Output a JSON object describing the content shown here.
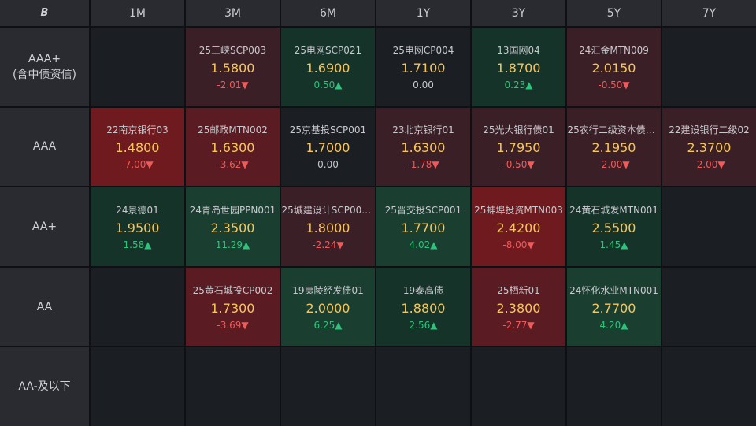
{
  "header": {
    "logo": "B",
    "tenors": [
      "1M",
      "3M",
      "6M",
      "1Y",
      "3Y",
      "5Y",
      "7Y"
    ]
  },
  "rows": [
    {
      "label": [
        "AAA+",
        "(含中债资信)"
      ],
      "cells": [
        null,
        {
          "name": "25三峡SCP003",
          "price": "1.5800",
          "change": "-2.01▼",
          "dir": "down"
        },
        {
          "name": "25电网SCP021",
          "price": "1.6900",
          "change": "0.50▲",
          "dir": "up"
        },
        {
          "name": "25电网CP004",
          "price": "1.7100",
          "change": "0.00",
          "dir": "flat"
        },
        {
          "name": "13国网04",
          "price": "1.8700",
          "change": "0.23▲",
          "dir": "up"
        },
        {
          "name": "24汇金MTN009",
          "price": "2.0150",
          "change": "-0.50▼",
          "dir": "down"
        },
        null
      ]
    },
    {
      "label": [
        "AAA"
      ],
      "cells": [
        {
          "name": "22南京银行03",
          "price": "1.4800",
          "change": "-7.00▼",
          "dir": "down"
        },
        {
          "name": "25邮政MTN002",
          "price": "1.6300",
          "change": "-3.62▼",
          "dir": "down"
        },
        {
          "name": "25京基投SCP001",
          "price": "1.7000",
          "change": "0.00",
          "dir": "flat"
        },
        {
          "name": "23北京银行01",
          "price": "1.6300",
          "change": "-1.78▼",
          "dir": "down"
        },
        {
          "name": "25光大银行债01",
          "price": "1.7950",
          "change": "-0.50▼",
          "dir": "down"
        },
        {
          "name": "25农行二级资本债0...",
          "price": "2.1950",
          "change": "-2.00▼",
          "dir": "down"
        },
        {
          "name": "22建设银行二级02",
          "price": "2.3700",
          "change": "-2.00▼",
          "dir": "down"
        }
      ]
    },
    {
      "label": [
        "AA+"
      ],
      "cells": [
        {
          "name": "24景德01",
          "price": "1.9500",
          "change": "1.58▲",
          "dir": "up"
        },
        {
          "name": "24青岛世园PPN001",
          "price": "2.3500",
          "change": "11.29▲",
          "dir": "up"
        },
        {
          "name": "25城建设计SCP002...",
          "price": "1.8000",
          "change": "-2.24▼",
          "dir": "down"
        },
        {
          "name": "25晋交投SCP001",
          "price": "1.7700",
          "change": "4.02▲",
          "dir": "up"
        },
        {
          "name": "25蚌埠投资MTN003",
          "price": "2.4200",
          "change": "-8.00▼",
          "dir": "down"
        },
        {
          "name": "24黄石城发MTN001",
          "price": "2.5500",
          "change": "1.45▲",
          "dir": "up"
        },
        null
      ]
    },
    {
      "label": [
        "AA"
      ],
      "cells": [
        null,
        {
          "name": "25黄石城投CP002",
          "price": "1.7300",
          "change": "-3.69▼",
          "dir": "down"
        },
        {
          "name": "19夷陵经发债01",
          "price": "2.0000",
          "change": "6.25▲",
          "dir": "up"
        },
        {
          "name": "19泰高债",
          "price": "1.8800",
          "change": "2.56▲",
          "dir": "up"
        },
        {
          "name": "25栖新01",
          "price": "2.3800",
          "change": "-2.77▼",
          "dir": "down"
        },
        {
          "name": "24怀化水业MTN001",
          "price": "2.7700",
          "change": "4.20▲",
          "dir": "up"
        },
        null
      ]
    },
    {
      "label": [
        "AA-及以下"
      ],
      "cells": [
        null,
        null,
        null,
        null,
        null,
        null,
        null
      ]
    }
  ],
  "colors": {
    "price": "#f6c65a",
    "up": "#2ec27a",
    "down": "#f05a5a",
    "bg_red_dark": "#3b1f26",
    "bg_red_mid": "#5a1c22",
    "bg_red_bright": "#6e1a1f",
    "bg_green_dark": "#163329",
    "bg_green_mid": "#1a3f31"
  }
}
